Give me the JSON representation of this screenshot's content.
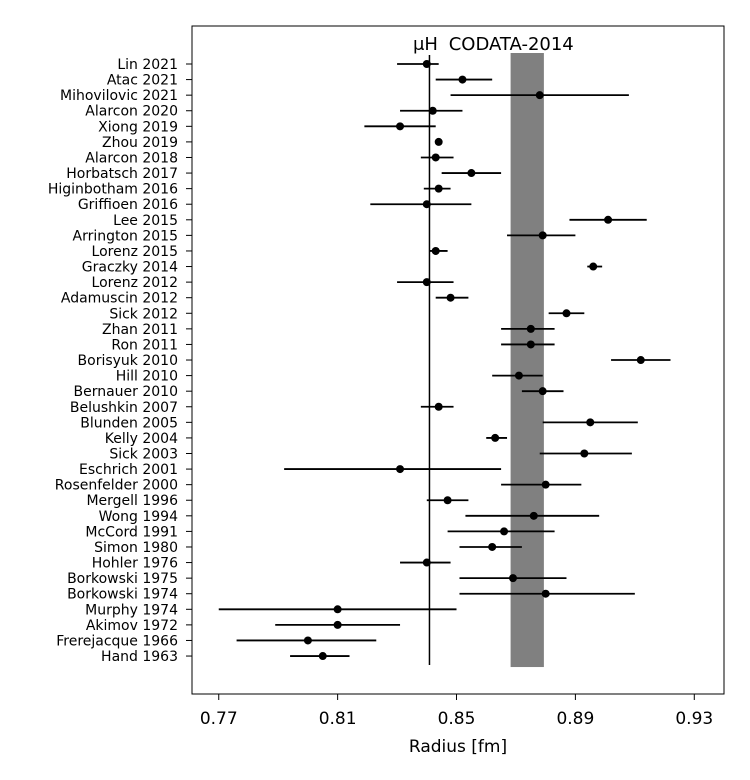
{
  "chart_data": {
    "type": "scatter",
    "xlabel": "Radius [fm]",
    "xlim": [
      0.761,
      0.94
    ],
    "xticks": [
      0.77,
      0.81,
      0.85,
      0.89,
      0.93
    ],
    "xtick_labels": [
      "0.77",
      "0.81",
      "0.85",
      "0.89",
      "0.93"
    ],
    "grid": false,
    "reference_line": {
      "label": "μH",
      "x": 0.8409
    },
    "reference_band": {
      "label": "CODATA-2014",
      "x_low": 0.8682,
      "x_high": 0.8794,
      "color": "#808080"
    },
    "series": [
      {
        "label": "Lin 2021",
        "x": 0.84,
        "xerr_low": 0.83,
        "xerr_high": 0.844
      },
      {
        "label": "Atac 2021",
        "x": 0.852,
        "xerr_low": 0.843,
        "xerr_high": 0.862
      },
      {
        "label": "Mihovilovic 2021",
        "x": 0.878,
        "xerr_low": 0.848,
        "xerr_high": 0.908
      },
      {
        "label": "Alarcon 2020",
        "x": 0.842,
        "xerr_low": 0.831,
        "xerr_high": 0.852
      },
      {
        "label": "Xiong 2019",
        "x": 0.831,
        "xerr_low": 0.819,
        "xerr_high": 0.843
      },
      {
        "label": "Zhou 2019",
        "x": 0.844,
        "xerr_low": 0.843,
        "xerr_high": 0.845
      },
      {
        "label": "Alarcon 2018",
        "x": 0.843,
        "xerr_low": 0.838,
        "xerr_high": 0.849
      },
      {
        "label": "Horbatsch 2017",
        "x": 0.855,
        "xerr_low": 0.845,
        "xerr_high": 0.865
      },
      {
        "label": "Higinbotham 2016",
        "x": 0.844,
        "xerr_low": 0.839,
        "xerr_high": 0.848
      },
      {
        "label": "Griffioen 2016",
        "x": 0.84,
        "xerr_low": 0.821,
        "xerr_high": 0.855
      },
      {
        "label": "Lee 2015",
        "x": 0.901,
        "xerr_low": 0.888,
        "xerr_high": 0.914
      },
      {
        "label": "Arrington 2015",
        "x": 0.879,
        "xerr_low": 0.867,
        "xerr_high": 0.89
      },
      {
        "label": "Lorenz 2015",
        "x": 0.843,
        "xerr_low": 0.841,
        "xerr_high": 0.847
      },
      {
        "label": "Graczky 2014",
        "x": 0.896,
        "xerr_low": 0.894,
        "xerr_high": 0.899
      },
      {
        "label": "Lorenz 2012",
        "x": 0.84,
        "xerr_low": 0.83,
        "xerr_high": 0.849
      },
      {
        "label": "Adamuscin 2012",
        "x": 0.848,
        "xerr_low": 0.843,
        "xerr_high": 0.854
      },
      {
        "label": "Sick 2012",
        "x": 0.887,
        "xerr_low": 0.881,
        "xerr_high": 0.893
      },
      {
        "label": "Zhan 2011",
        "x": 0.875,
        "xerr_low": 0.865,
        "xerr_high": 0.883
      },
      {
        "label": "Ron 2011",
        "x": 0.875,
        "xerr_low": 0.865,
        "xerr_high": 0.883
      },
      {
        "label": "Borisyuk 2010",
        "x": 0.912,
        "xerr_low": 0.902,
        "xerr_high": 0.922
      },
      {
        "label": "Hill 2010",
        "x": 0.871,
        "xerr_low": 0.862,
        "xerr_high": 0.879
      },
      {
        "label": "Bernauer 2010",
        "x": 0.879,
        "xerr_low": 0.872,
        "xerr_high": 0.886
      },
      {
        "label": "Belushkin 2007",
        "x": 0.844,
        "xerr_low": 0.838,
        "xerr_high": 0.849
      },
      {
        "label": "Blunden 2005",
        "x": 0.895,
        "xerr_low": 0.879,
        "xerr_high": 0.911
      },
      {
        "label": "Kelly 2004",
        "x": 0.863,
        "xerr_low": 0.86,
        "xerr_high": 0.867
      },
      {
        "label": "Sick 2003",
        "x": 0.893,
        "xerr_low": 0.878,
        "xerr_high": 0.909
      },
      {
        "label": "Eschrich 2001",
        "x": 0.831,
        "xerr_low": 0.792,
        "xerr_high": 0.865
      },
      {
        "label": "Rosenfelder 2000",
        "x": 0.88,
        "xerr_low": 0.865,
        "xerr_high": 0.892
      },
      {
        "label": "Mergell 1996",
        "x": 0.847,
        "xerr_low": 0.84,
        "xerr_high": 0.854
      },
      {
        "label": "Wong 1994",
        "x": 0.876,
        "xerr_low": 0.853,
        "xerr_high": 0.898
      },
      {
        "label": "McCord 1991",
        "x": 0.866,
        "xerr_low": 0.847,
        "xerr_high": 0.883
      },
      {
        "label": "Simon 1980",
        "x": 0.862,
        "xerr_low": 0.851,
        "xerr_high": 0.872
      },
      {
        "label": "Hohler 1976",
        "x": 0.84,
        "xerr_low": 0.831,
        "xerr_high": 0.848
      },
      {
        "label": "Borkowski 1975",
        "x": 0.869,
        "xerr_low": 0.851,
        "xerr_high": 0.887
      },
      {
        "label": "Borkowski 1974",
        "x": 0.88,
        "xerr_low": 0.851,
        "xerr_high": 0.91
      },
      {
        "label": "Murphy 1974",
        "x": 0.81,
        "xerr_low": 0.77,
        "xerr_high": 0.85
      },
      {
        "label": "Akimov 1972",
        "x": 0.81,
        "xerr_low": 0.789,
        "xerr_high": 0.831
      },
      {
        "label": "Frerejacque 1966",
        "x": 0.8,
        "xerr_low": 0.776,
        "xerr_high": 0.823
      },
      {
        "label": "Hand 1963",
        "x": 0.805,
        "xerr_low": 0.794,
        "xerr_high": 0.814
      }
    ]
  }
}
